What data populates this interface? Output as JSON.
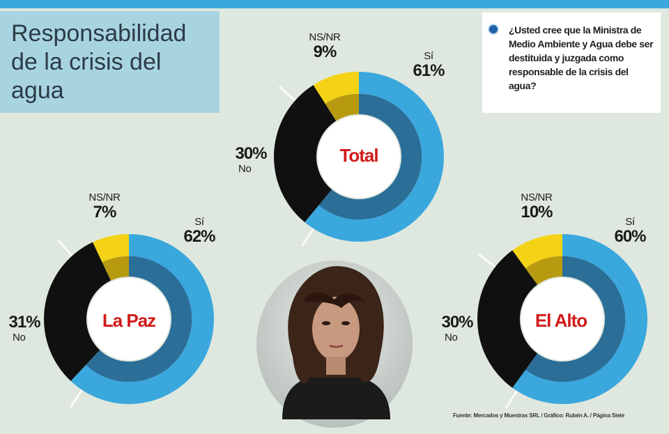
{
  "title": "Responsabilidad\nde la crisis del\nagua",
  "question": "¿Usted cree que la Ministra de Medio Ambiente y Agua debe ser destituida y juzgada como responsable de la crisis del agua?",
  "source": "Fuente: Mercados y Muestras SRL / Gráfico: Rubén A. / Página Siete",
  "colors": {
    "si": "#3aa7dd",
    "si_dark": "#2b6e98",
    "no": "#101010",
    "nsnr": "#f4d316",
    "nsnr_dark": "#b89a10"
  },
  "chart_data": [
    {
      "type": "pie",
      "title": "Total",
      "categories": [
        "Sí",
        "No",
        "NS/NR"
      ],
      "values": [
        61,
        30,
        9
      ],
      "labels": {
        "si": "Sí",
        "si_pct": "61%",
        "no": "No",
        "no_pct": "30%",
        "nsnr": "NS/NR",
        "nsnr_pct": "9%"
      }
    },
    {
      "type": "pie",
      "title": "La Paz",
      "categories": [
        "Sí",
        "No",
        "NS/NR"
      ],
      "values": [
        62,
        31,
        7
      ],
      "labels": {
        "si": "Sí",
        "si_pct": "62%",
        "no": "No",
        "no_pct": "31%",
        "nsnr": "NS/NR",
        "nsnr_pct": "7%"
      }
    },
    {
      "type": "pie",
      "title": "El Alto",
      "categories": [
        "Sí",
        "No",
        "NS/NR"
      ],
      "values": [
        60,
        30,
        10
      ],
      "labels": {
        "si": "Sí",
        "si_pct": "60%",
        "no": "No",
        "no_pct": "30%",
        "nsnr": "NS/NR",
        "nsnr_pct": "10%"
      }
    }
  ]
}
